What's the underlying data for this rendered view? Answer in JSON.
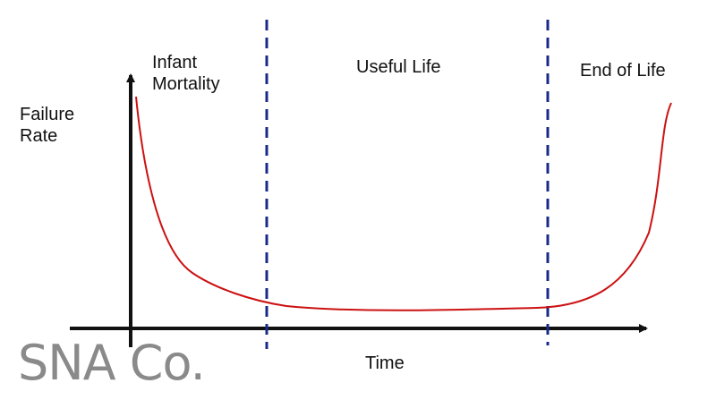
{
  "diagram": {
    "y_axis_label": "Failure\nRate",
    "x_axis_label": "Time",
    "regions": {
      "infant": "Infant\nMortality",
      "useful": "Useful Life",
      "end": "End of Life"
    }
  },
  "logo": {
    "text": "SNA Co."
  },
  "colors": {
    "axes": "#111111",
    "curve": "#cc1111",
    "dividers": "#1a2a8a",
    "logo": "#8a8a8a"
  }
}
